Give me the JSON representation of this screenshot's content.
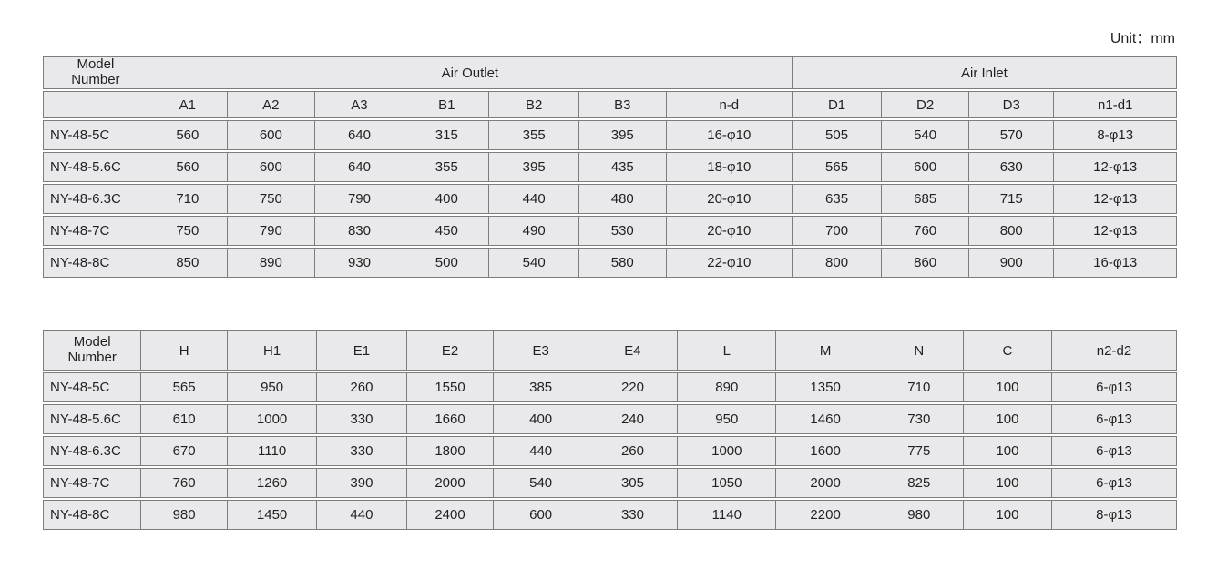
{
  "unit_label": "Unit：mm",
  "colors": {
    "cell_background": "#e9e9eb",
    "cell_border": "#7d7d7d",
    "text": "#231f20",
    "page_background": "#ffffff"
  },
  "table1": {
    "corner_header": "Model\nNumber",
    "groups": [
      {
        "label": "Air Outlet",
        "span": 7
      },
      {
        "label": "Air Inlet",
        "span": 4
      }
    ],
    "columns": [
      "A1",
      "A2",
      "A3",
      "B1",
      "B2",
      "B3",
      "n-d",
      "D1",
      "D2",
      "D3",
      "n1-d1"
    ],
    "rows": [
      {
        "model": "NY-48-5C",
        "cells": [
          "560",
          "600",
          "640",
          "315",
          "355",
          "395",
          "16-φ10",
          "505",
          "540",
          "570",
          "8-φ13"
        ]
      },
      {
        "model": "NY-48-5.6C",
        "cells": [
          "560",
          "600",
          "640",
          "355",
          "395",
          "435",
          "18-φ10",
          "565",
          "600",
          "630",
          "12-φ13"
        ]
      },
      {
        "model": "NY-48-6.3C",
        "cells": [
          "710",
          "750",
          "790",
          "400",
          "440",
          "480",
          "20-φ10",
          "635",
          "685",
          "715",
          "12-φ13"
        ]
      },
      {
        "model": "NY-48-7C",
        "cells": [
          "750",
          "790",
          "830",
          "450",
          "490",
          "530",
          "20-φ10",
          "700",
          "760",
          "800",
          "12-φ13"
        ]
      },
      {
        "model": "NY-48-8C",
        "cells": [
          "850",
          "890",
          "930",
          "500",
          "540",
          "580",
          "22-φ10",
          "800",
          "860",
          "900",
          "16-φ13"
        ]
      }
    ]
  },
  "table2": {
    "corner_header": "Model\nNumber",
    "columns": [
      "H",
      "H1",
      "E1",
      "E2",
      "E3",
      "E4",
      "L",
      "M",
      "N",
      "C",
      "n2-d2"
    ],
    "rows": [
      {
        "model": "NY-48-5C",
        "cells": [
          "565",
          "950",
          "260",
          "1550",
          "385",
          "220",
          "890",
          "1350",
          "710",
          "100",
          "6-φ13"
        ]
      },
      {
        "model": "NY-48-5.6C",
        "cells": [
          "610",
          "1000",
          "330",
          "1660",
          "400",
          "240",
          "950",
          "1460",
          "730",
          "100",
          "6-φ13"
        ]
      },
      {
        "model": "NY-48-6.3C",
        "cells": [
          "670",
          "1110",
          "330",
          "1800",
          "440",
          "260",
          "1000",
          "1600",
          "775",
          "100",
          "6-φ13"
        ]
      },
      {
        "model": "NY-48-7C",
        "cells": [
          "760",
          "1260",
          "390",
          "2000",
          "540",
          "305",
          "1050",
          "2000",
          "825",
          "100",
          "6-φ13"
        ]
      },
      {
        "model": "NY-48-8C",
        "cells": [
          "980",
          "1450",
          "440",
          "2400",
          "600",
          "330",
          "1140",
          "2200",
          "980",
          "100",
          "8-φ13"
        ]
      }
    ]
  }
}
